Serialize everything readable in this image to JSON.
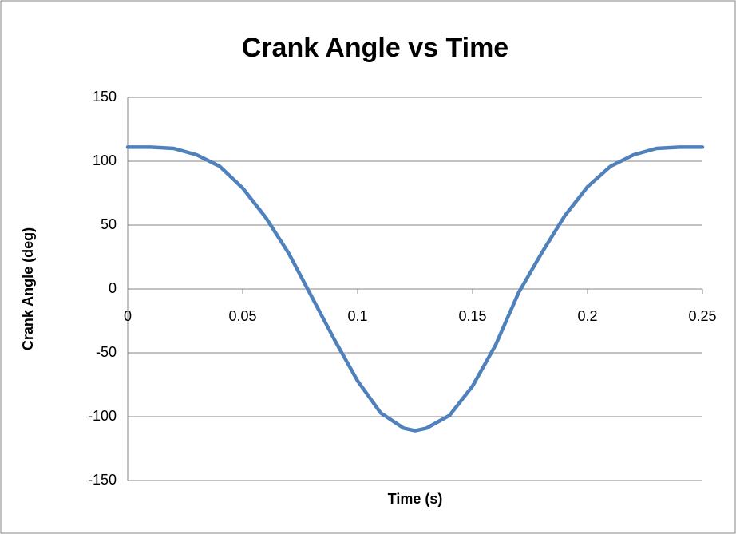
{
  "chart_data": {
    "type": "line",
    "title": "Crank Angle vs Time",
    "xlabel": "Time (s)",
    "ylabel": "Crank Angle (deg)",
    "x": [
      0,
      0.01,
      0.02,
      0.03,
      0.04,
      0.05,
      0.06,
      0.07,
      0.08,
      0.09,
      0.1,
      0.11,
      0.12,
      0.125,
      0.13,
      0.14,
      0.15,
      0.16,
      0.17,
      0.18,
      0.19,
      0.2,
      0.21,
      0.22,
      0.23,
      0.24,
      0.25
    ],
    "values": [
      111,
      111,
      110,
      105,
      96,
      79,
      56,
      28,
      -6,
      -40,
      -72,
      -97,
      -109,
      -111,
      -109,
      -99,
      -76,
      -44,
      -3,
      28,
      57,
      80,
      96,
      105,
      110,
      111,
      111
    ],
    "color": "#4f81bd",
    "xlim": [
      0,
      0.25
    ],
    "xticks": [
      0,
      0.05,
      0.1,
      0.15,
      0.2,
      0.25
    ],
    "ylim": [
      -150,
      150
    ],
    "yticks": [
      -150,
      -100,
      -50,
      0,
      50,
      100,
      150
    ],
    "grid": true
  }
}
